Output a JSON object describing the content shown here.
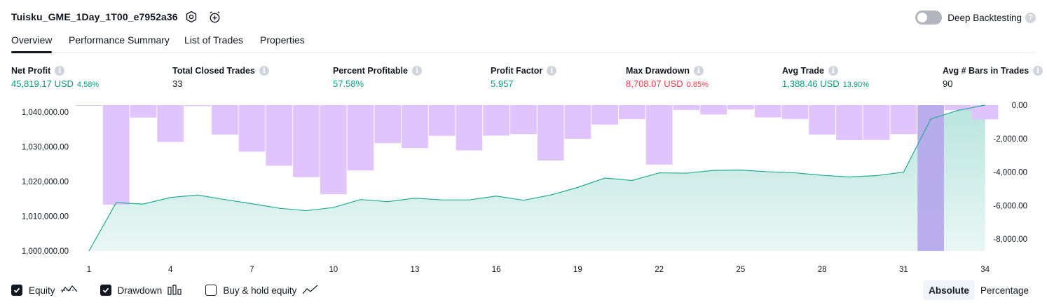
{
  "header": {
    "strategy_name": "Tuisku_GME_1Day_1T00_e7952a36",
    "deep_backtesting_label": "Deep Backtesting",
    "deep_backtesting_on": false
  },
  "tabs": [
    {
      "label": "Overview",
      "active": true
    },
    {
      "label": "Performance Summary",
      "active": false
    },
    {
      "label": "List of Trades",
      "active": false
    },
    {
      "label": "Properties",
      "active": false
    }
  ],
  "metrics": [
    {
      "label": "Net Profit",
      "value": "45,819.17 USD",
      "pct": "4.58%",
      "color": "green"
    },
    {
      "label": "Total Closed Trades",
      "value": "33",
      "pct": "",
      "color": "dark"
    },
    {
      "label": "Percent Profitable",
      "value": "57.58%",
      "pct": "",
      "color": "green"
    },
    {
      "label": "Profit Factor",
      "value": "5.957",
      "pct": "",
      "color": "green"
    },
    {
      "label": "Max Drawdown",
      "value": "8,708.07 USD",
      "pct": "0.85%",
      "color": "red"
    },
    {
      "label": "Avg Trade",
      "value": "1,388.46 USD",
      "pct": "13.90%",
      "color": "green"
    },
    {
      "label": "Avg # Bars in Trades",
      "value": "90",
      "pct": "",
      "color": "dark"
    }
  ],
  "legend": {
    "equity": {
      "label": "Equity",
      "checked": true
    },
    "drawdown": {
      "label": "Drawdown",
      "checked": true
    },
    "buy_hold": {
      "label": "Buy & hold equity",
      "checked": false
    }
  },
  "scale_toggle": {
    "absolute": "Absolute",
    "percentage": "Percentage",
    "selected": "Absolute"
  },
  "colors": {
    "equity_line": "#22ab94",
    "drawdown_bar": "#e1c3fd",
    "highlight_bar": "#b6a9ec",
    "positive": "#089981",
    "negative": "#f23645"
  },
  "chart_data": {
    "type": "area",
    "x_ticks": [
      "1",
      "4",
      "7",
      "10",
      "13",
      "16",
      "19",
      "22",
      "25",
      "28",
      "31",
      "34"
    ],
    "left_ticks": [
      "1,000,000.00",
      "1,010,000.00",
      "1,020,000.00",
      "1,030,000.00",
      "1,040,000.00"
    ],
    "right_ticks": [
      "0.00",
      "-2,000.00",
      "-4,000.00",
      "-6,000.00",
      "-8,000.00"
    ],
    "left_ylim": [
      1000000,
      1042000
    ],
    "right_ylim": [
      -8708.07,
      0
    ],
    "xlim": [
      1,
      34
    ],
    "series": [
      {
        "name": "Equity",
        "axis": "left",
        "x": [
          1,
          2,
          3,
          4,
          5,
          6,
          7,
          8,
          9,
          10,
          11,
          12,
          13,
          14,
          15,
          16,
          17,
          18,
          19,
          20,
          21,
          22,
          23,
          24,
          25,
          26,
          27,
          28,
          29,
          30,
          31,
          32,
          33,
          34
        ],
        "values": [
          1000000,
          1013900,
          1013500,
          1015400,
          1016100,
          1014800,
          1013600,
          1012300,
          1011600,
          1012500,
          1014800,
          1014200,
          1015200,
          1014700,
          1014700,
          1015800,
          1014600,
          1016100,
          1018300,
          1021000,
          1020300,
          1022500,
          1022400,
          1023200,
          1023300,
          1022800,
          1022500,
          1021800,
          1021300,
          1021700,
          1022700,
          1038000,
          1040500,
          1045800
        ]
      },
      {
        "name": "Drawdown",
        "axis": "right",
        "x": [
          1,
          2,
          3,
          4,
          5,
          6,
          7,
          8,
          9,
          10,
          11,
          12,
          13,
          14,
          15,
          16,
          17,
          18,
          19,
          20,
          21,
          22,
          23,
          24,
          25,
          26,
          27,
          28,
          29,
          30,
          31,
          32,
          33,
          34
        ],
        "values": [
          -30,
          -5950,
          -740,
          -2200,
          -60,
          -1760,
          -2780,
          -3620,
          -4300,
          -5320,
          -3900,
          -2270,
          -2560,
          -1830,
          -2700,
          -1820,
          -1730,
          -3310,
          -2010,
          -1160,
          -840,
          -3550,
          -290,
          -560,
          -260,
          -730,
          -830,
          -1760,
          -2090,
          -2080,
          -1730,
          -8708.07,
          -300,
          -850
        ]
      }
    ],
    "highlight_index": 31,
    "legend_position": "bottom-left"
  }
}
